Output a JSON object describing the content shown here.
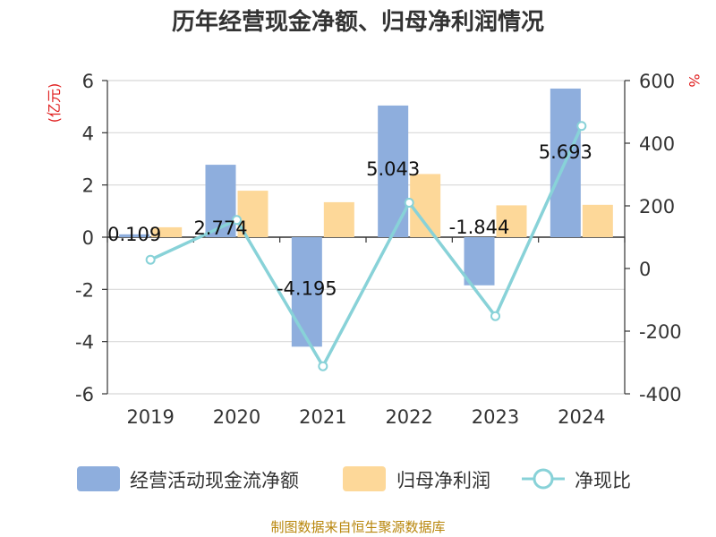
{
  "chart_data": {
    "type": "bar",
    "title": "历年经营现金净额、归母净利润情况",
    "categories": [
      "2019",
      "2020",
      "2021",
      "2022",
      "2023",
      "2024"
    ],
    "left_axis": {
      "unit": "(亿元)",
      "ylim": [
        -6,
        6
      ],
      "ticks": [
        6,
        4,
        2,
        0,
        -2,
        -4,
        -6
      ]
    },
    "right_axis": {
      "unit": "%",
      "ylim": [
        -400,
        600
      ],
      "ticks": [
        600,
        400,
        200,
        0,
        -200,
        -400
      ]
    },
    "series": [
      {
        "name": "经营活动现金流净额",
        "type": "bar",
        "axis": "left",
        "color": "#8eaedd",
        "values": [
          0.109,
          2.774,
          -4.195,
          5.043,
          -1.844,
          5.693
        ],
        "labels": [
          "0.109",
          "2.774",
          "-4.195",
          "5.043",
          "-1.844",
          "5.693"
        ]
      },
      {
        "name": "归母净利润",
        "type": "bar",
        "axis": "left",
        "color": "#fdd899",
        "values": [
          0.38,
          1.78,
          1.34,
          2.42,
          1.22,
          1.24
        ]
      },
      {
        "name": "净现比",
        "type": "line",
        "axis": "right",
        "color": "#88d2d8",
        "values": [
          28,
          155,
          -312,
          210,
          -152,
          455
        ]
      }
    ],
    "grid": true,
    "legend": "bottom"
  },
  "source": "制图数据来自恒生聚源数据库"
}
